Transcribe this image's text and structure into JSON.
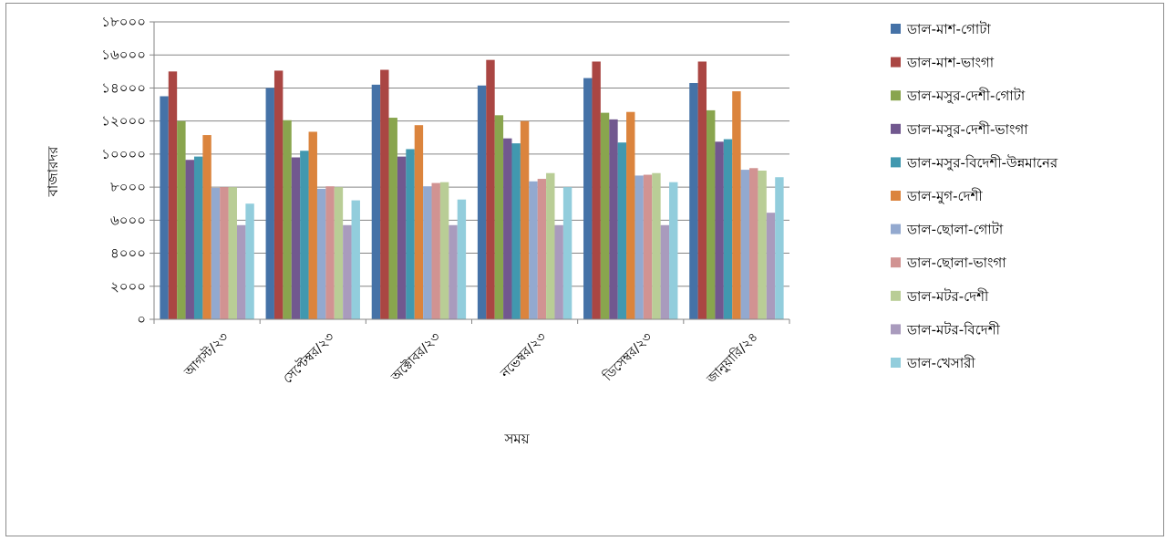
{
  "chart_data": {
    "type": "bar",
    "title": "",
    "xlabel": "সময়",
    "ylabel": "বাজারদর",
    "ylim": [
      0,
      18000
    ],
    "yticks": [
      0,
      2000,
      4000,
      6000,
      8000,
      10000,
      12000,
      14000,
      16000,
      18000
    ],
    "ytick_labels": [
      "০",
      "২০০০",
      "৪০০০",
      "৬০০০",
      "৮০০০",
      "১০০০০",
      "১২০০০",
      "১৪০০০",
      "১৬০০০",
      "১৮০০০"
    ],
    "categories": [
      "আগস্ট/২৩",
      "সেপ্টেম্বর/২৩",
      "অক্টোবর/২৩",
      "নভেম্বর/২৩",
      "ডিসেম্বর/২৩",
      "জানুয়ারি/২৪"
    ],
    "grid": true,
    "legend_position": "right",
    "series": [
      {
        "name": "ডাল-মাশ-গোটা",
        "color": "#4572A7",
        "values": [
          13500,
          14000,
          14200,
          14150,
          14600,
          14300
        ]
      },
      {
        "name": "ডাল-মাশ-ভাংগা",
        "color": "#AA4643",
        "values": [
          15000,
          15050,
          15100,
          15700,
          15600,
          15600
        ]
      },
      {
        "name": "ডাল-মসুর-দেশী-গোটা",
        "color": "#89A54E",
        "values": [
          12000,
          12050,
          12200,
          12350,
          12500,
          12650
        ]
      },
      {
        "name": "ডাল-মসুর-দেশী-ভাংগা",
        "color": "#71588F",
        "values": [
          9650,
          9800,
          9850,
          10950,
          12100,
          10750
        ]
      },
      {
        "name": "ডাল-মসুর-বিদেশী-উন্নমানের",
        "color": "#4198AF",
        "values": [
          9850,
          10200,
          10300,
          10650,
          10700,
          10900
        ]
      },
      {
        "name": "ডাল-মুগ-দেশী",
        "color": "#DB843D",
        "values": [
          11150,
          11350,
          11750,
          12000,
          12550,
          13800
        ]
      },
      {
        "name": "ডাল-ছোলা-গোটা",
        "color": "#93A9CF",
        "values": [
          7950,
          7900,
          8050,
          8350,
          8700,
          9050
        ]
      },
      {
        "name": "ডাল-ছোলা-ভাংগা",
        "color": "#D19392",
        "values": [
          8000,
          8050,
          8250,
          8500,
          8750,
          9150
        ]
      },
      {
        "name": "ডাল-মটর-দেশী",
        "color": "#B9CD96",
        "values": [
          8000,
          8000,
          8300,
          8850,
          8850,
          9000
        ]
      },
      {
        "name": "ডাল-মটর-বিদেশী",
        "color": "#A99BBD",
        "values": [
          5700,
          5700,
          5700,
          5700,
          5700,
          6450
        ]
      },
      {
        "name": "ডাল-খেসারী",
        "color": "#92CDDC",
        "values": [
          7000,
          7200,
          7250,
          8000,
          8300,
          8600
        ]
      }
    ]
  }
}
